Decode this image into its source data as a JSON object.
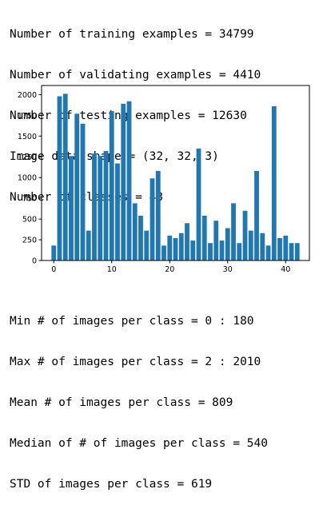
{
  "top_stats": [
    "Number of training examples = 34799",
    "Number of validating examples = 4410",
    "Number of testing examples = 12630",
    "Image data shape = (32, 32, 3)",
    "Number of classes = 43"
  ],
  "bottom_stats": [
    "Min # of images per class = 0 : 180",
    "Max # of images per class = 2 : 2010",
    "Mean # of images per class = 809",
    "Median of # of images per class = 540",
    "STD of images per class = 619"
  ],
  "chart_data": {
    "type": "bar",
    "title": "",
    "xlabel": "",
    "ylabel": "",
    "x": [
      0,
      1,
      2,
      3,
      4,
      5,
      6,
      7,
      8,
      9,
      10,
      11,
      12,
      13,
      14,
      15,
      16,
      17,
      18,
      19,
      20,
      21,
      22,
      23,
      24,
      25,
      26,
      27,
      28,
      29,
      30,
      31,
      32,
      33,
      34,
      35,
      36,
      37,
      38,
      39,
      40,
      41,
      42
    ],
    "values": [
      180,
      1980,
      2010,
      1260,
      1770,
      1650,
      360,
      1290,
      1260,
      1320,
      1800,
      1170,
      1890,
      1920,
      690,
      540,
      360,
      990,
      1080,
      180,
      300,
      270,
      330,
      450,
      240,
      1350,
      540,
      210,
      480,
      240,
      390,
      690,
      210,
      599,
      360,
      1080,
      330,
      180,
      1860,
      270,
      300,
      210,
      210
    ],
    "xlim": [
      -2.1,
      44.1
    ],
    "ylim": [
      0,
      2110
    ],
    "xticks": [
      "0",
      "10",
      "20",
      "30",
      "40"
    ],
    "yticks": [
      "0",
      "250",
      "500",
      "750",
      "1000",
      "1250",
      "1500",
      "1750",
      "2000"
    ],
    "bar_color": "#1f77b4",
    "grid": false,
    "legend": "none"
  }
}
